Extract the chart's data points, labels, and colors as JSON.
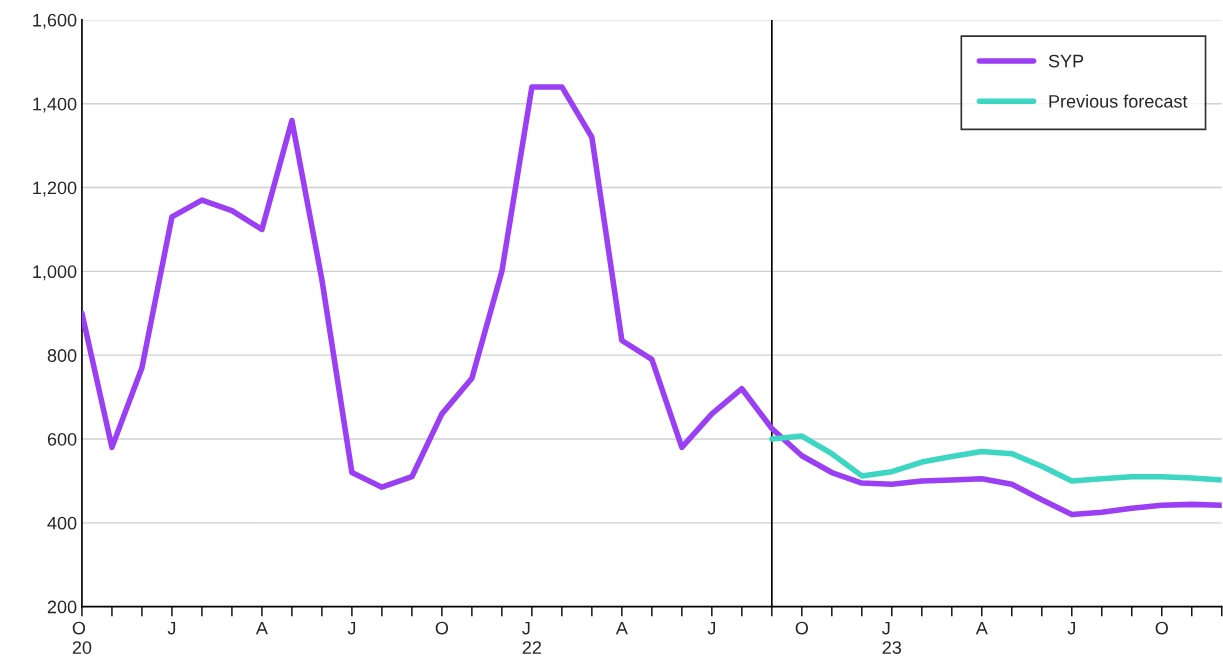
{
  "chart_data": {
    "type": "line",
    "x": [
      "2020-10",
      "2020-11",
      "2020-12",
      "2021-01",
      "2021-02",
      "2021-03",
      "2021-04",
      "2021-05",
      "2021-06",
      "2021-07",
      "2021-08",
      "2021-09",
      "2021-10",
      "2021-11",
      "2021-12",
      "2022-01",
      "2022-02",
      "2022-03",
      "2022-04",
      "2022-05",
      "2022-06",
      "2022-07",
      "2022-08",
      "2022-09",
      "2022-10",
      "2022-11",
      "2022-12",
      "2023-01",
      "2023-02",
      "2023-03",
      "2023-04",
      "2023-05",
      "2023-06",
      "2023-07",
      "2023-08",
      "2023-09",
      "2023-10",
      "2023-11",
      "2023-12"
    ],
    "series": [
      {
        "name": "SYP",
        "color": "#9b3ff5",
        "values": [
          900,
          580,
          770,
          1130,
          1170,
          1145,
          1100,
          1360,
          980,
          520,
          485,
          510,
          660,
          745,
          1000,
          1440,
          1440,
          1320,
          835,
          790,
          580,
          660,
          720,
          625,
          560,
          520,
          495,
          492,
          500,
          502,
          505,
          492,
          455,
          420,
          425,
          435,
          442,
          444,
          442
        ]
      },
      {
        "name": "Previous forecast",
        "color": "#3dd6c2",
        "values": [
          null,
          null,
          null,
          null,
          null,
          null,
          null,
          null,
          null,
          null,
          null,
          null,
          null,
          null,
          null,
          null,
          null,
          null,
          null,
          null,
          null,
          null,
          null,
          600,
          607,
          565,
          512,
          522,
          545,
          558,
          570,
          565,
          535,
          500,
          505,
          510,
          510,
          507,
          502
        ]
      }
    ],
    "xlim": [
      "2020-10",
      "2023-12"
    ],
    "xticks": [
      {
        "value": "2020-10",
        "label": "O\n20"
      },
      {
        "value": "2020-11",
        "label": null
      },
      {
        "value": "2020-12",
        "label": null
      },
      {
        "value": "2021-01",
        "label": "J"
      },
      {
        "value": "2021-02",
        "label": null
      },
      {
        "value": "2021-03",
        "label": null
      },
      {
        "value": "2021-04",
        "label": "A"
      },
      {
        "value": "2021-05",
        "label": null
      },
      {
        "value": "2021-06",
        "label": null
      },
      {
        "value": "2021-07",
        "label": "J"
      },
      {
        "value": "2021-08",
        "label": null
      },
      {
        "value": "2021-09",
        "label": null
      },
      {
        "value": "2021-10",
        "label": "O"
      },
      {
        "value": "2021-11",
        "label": null
      },
      {
        "value": "2021-12",
        "label": null
      },
      {
        "value": "2022-01",
        "label": "J\n22"
      },
      {
        "value": "2022-02",
        "label": null
      },
      {
        "value": "2022-03",
        "label": null
      },
      {
        "value": "2022-04",
        "label": "A"
      },
      {
        "value": "2022-05",
        "label": null
      },
      {
        "value": "2022-06",
        "label": null
      },
      {
        "value": "2022-07",
        "label": "J"
      },
      {
        "value": "2022-08",
        "label": null
      },
      {
        "value": "2022-09",
        "label": null
      },
      {
        "value": "2022-10",
        "label": "O"
      },
      {
        "value": "2022-11",
        "label": null
      },
      {
        "value": "2022-12",
        "label": null
      },
      {
        "value": "2023-01",
        "label": "J\n23"
      },
      {
        "value": "2023-02",
        "label": null
      },
      {
        "value": "2023-03",
        "label": null
      },
      {
        "value": "2023-04",
        "label": "A"
      },
      {
        "value": "2023-05",
        "label": null
      },
      {
        "value": "2023-06",
        "label": null
      },
      {
        "value": "2023-07",
        "label": "J"
      },
      {
        "value": "2023-08",
        "label": null
      },
      {
        "value": "2023-09",
        "label": null
      },
      {
        "value": "2023-10",
        "label": "O"
      },
      {
        "value": "2023-11",
        "label": null
      },
      {
        "value": "2023-12",
        "label": null
      }
    ],
    "ylim": [
      200,
      1600
    ],
    "yticks": [
      {
        "value": 200,
        "label": "200"
      },
      {
        "value": 400,
        "label": "400"
      },
      {
        "value": 600,
        "label": "600"
      },
      {
        "value": 800,
        "label": "800"
      },
      {
        "value": 1000,
        "label": "1,000"
      },
      {
        "value": 1200,
        "label": "1,200"
      },
      {
        "value": 1400,
        "label": "1,400"
      },
      {
        "value": 1600,
        "label": "1,600"
      }
    ],
    "ref_lines": [
      {
        "axis": "x",
        "value": "2022-09",
        "color": "#000000"
      }
    ],
    "grid": "y",
    "legend": "top right",
    "line_style": "solid"
  }
}
